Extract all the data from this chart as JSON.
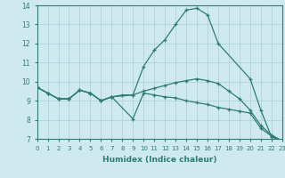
{
  "title": "",
  "xlabel": "Humidex (Indice chaleur)",
  "ylabel": "",
  "background_color": "#ceeaf0",
  "grid_color": "#aed4dc",
  "line_color": "#2e7d70",
  "xlim": [
    0,
    23
  ],
  "ylim": [
    7,
    14
  ],
  "yticks": [
    7,
    8,
    9,
    10,
    11,
    12,
    13,
    14
  ],
  "xticks": [
    0,
    1,
    2,
    3,
    4,
    5,
    6,
    7,
    8,
    9,
    10,
    11,
    12,
    13,
    14,
    15,
    16,
    17,
    18,
    19,
    20,
    21,
    22,
    23
  ],
  "line1_x": [
    0,
    1,
    2,
    3,
    4,
    5,
    6,
    7,
    9,
    10,
    11,
    12,
    13,
    14,
    15,
    16,
    17,
    20,
    21,
    22,
    23
  ],
  "line1_y": [
    9.7,
    9.4,
    9.1,
    9.1,
    9.55,
    9.4,
    9.0,
    9.2,
    9.3,
    10.8,
    11.65,
    12.2,
    13.0,
    13.75,
    13.85,
    13.5,
    12.0,
    10.15,
    8.5,
    7.1,
    6.9
  ],
  "line2_x": [
    0,
    1,
    2,
    3,
    4,
    5,
    6,
    7,
    9,
    10,
    11,
    12,
    13,
    14,
    15,
    16,
    17,
    18,
    19,
    20,
    21,
    22,
    23
  ],
  "line2_y": [
    9.7,
    9.4,
    9.1,
    9.1,
    9.55,
    9.4,
    9.0,
    9.2,
    8.05,
    9.4,
    9.3,
    9.2,
    9.15,
    9.0,
    8.9,
    8.8,
    8.65,
    8.55,
    8.45,
    8.35,
    7.55,
    7.15,
    6.9
  ],
  "line3_x": [
    0,
    1,
    2,
    3,
    4,
    5,
    6,
    7,
    8,
    9,
    10,
    11,
    12,
    13,
    14,
    15,
    16,
    17,
    18,
    19,
    20,
    21,
    22,
    23
  ],
  "line3_y": [
    9.7,
    9.4,
    9.1,
    9.1,
    9.55,
    9.4,
    9.0,
    9.2,
    9.3,
    9.3,
    9.5,
    9.65,
    9.8,
    9.95,
    10.05,
    10.15,
    10.05,
    9.9,
    9.5,
    9.1,
    8.5,
    7.7,
    7.2,
    6.9
  ]
}
